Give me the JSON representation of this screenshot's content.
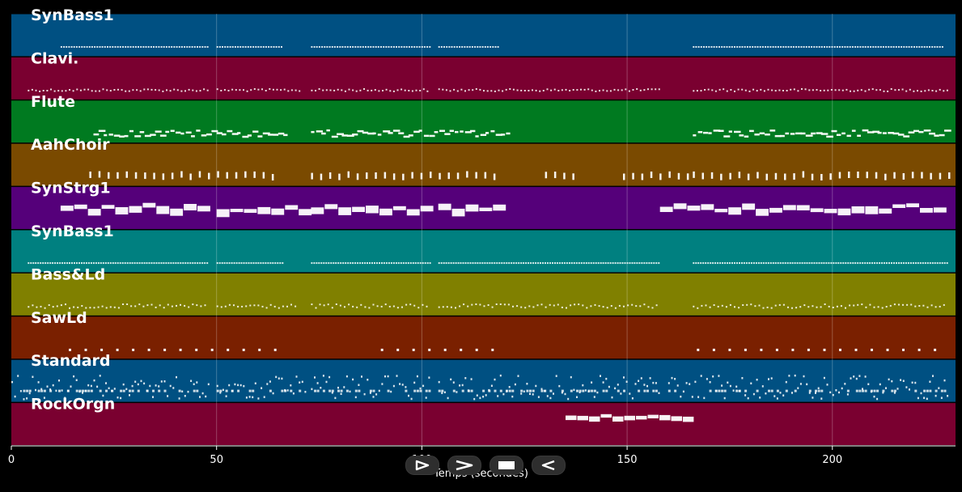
{
  "x_axis": {
    "label": "Temps (secondes)",
    "range": [
      0,
      230
    ],
    "ticks": [
      {
        "value": 0,
        "label": "0"
      },
      {
        "value": 50,
        "label": "50"
      },
      {
        "value": 100,
        "label": "100"
      },
      {
        "value": 150,
        "label": "150"
      },
      {
        "value": 200,
        "label": "200"
      }
    ]
  },
  "tracks": [
    {
      "name": "SynBass1",
      "color": "#005082",
      "style": "dots",
      "density": 1.6,
      "size": 2,
      "spread": 0,
      "segments": [
        [
          12,
          48
        ],
        [
          50,
          66
        ],
        [
          73,
          102
        ],
        [
          104,
          119
        ],
        [
          166,
          227
        ]
      ]
    },
    {
      "name": "Clavi.",
      "color": "#7a0030",
      "style": "dots",
      "density": 1.1,
      "size": 2,
      "spread": 3,
      "segments": [
        [
          4,
          48
        ],
        [
          50,
          70
        ],
        [
          73,
          102
        ],
        [
          104,
          158
        ],
        [
          166,
          228
        ]
      ]
    },
    {
      "name": "Flute",
      "color": "#007a20",
      "style": "dashes",
      "density": 0.8,
      "size": 3,
      "spread": 8,
      "segments": [
        [
          20,
          67
        ],
        [
          73,
          121
        ],
        [
          166,
          228
        ]
      ]
    },
    {
      "name": "AahChoir",
      "color": "#7a4a00",
      "style": "bars",
      "density": 0.45,
      "size": 4,
      "spread": 6,
      "segments": [
        [
          19,
          64
        ],
        [
          73,
          118
        ],
        [
          130,
          138
        ],
        [
          149,
          165
        ],
        [
          166,
          230
        ]
      ]
    },
    {
      "name": "SynStrg1",
      "color": "#55007a",
      "style": "blocks",
      "density": 0.3,
      "size": 7,
      "spread": 8,
      "segments": [
        [
          12,
          48
        ],
        [
          50,
          72
        ],
        [
          73,
          102
        ],
        [
          104,
          119
        ],
        [
          158,
          227
        ]
      ]
    },
    {
      "name": "SynBass1",
      "color": "#008080",
      "style": "dots",
      "density": 1.7,
      "size": 2,
      "spread": 0,
      "segments": [
        [
          4,
          48
        ],
        [
          50,
          66
        ],
        [
          73,
          102
        ],
        [
          104,
          158
        ],
        [
          166,
          228
        ]
      ]
    },
    {
      "name": "Bass&Ld",
      "color": "#808000",
      "style": "dots",
      "density": 1.0,
      "size": 2,
      "spread": 5,
      "segments": [
        [
          4,
          48
        ],
        [
          50,
          70
        ],
        [
          73,
          102
        ],
        [
          104,
          158
        ],
        [
          166,
          228
        ]
      ]
    },
    {
      "name": "SawLd",
      "color": "#7a2000",
      "style": "squares",
      "density": 0.26,
      "size": 3,
      "spread": 0,
      "segments": [
        [
          14,
          66
        ],
        [
          90,
          120
        ],
        [
          167,
          227
        ]
      ]
    },
    {
      "name": "Standard",
      "color": "#005082",
      "style": "drums",
      "density": 1.4,
      "size": 2,
      "spread": 10,
      "segments": [
        [
          0,
          48
        ],
        [
          50,
          72
        ],
        [
          73,
          102
        ],
        [
          104,
          158
        ],
        [
          160,
          228
        ]
      ]
    },
    {
      "name": "RockOrgn",
      "color": "#7a0030",
      "style": "organ",
      "density": 0.35,
      "size": 6,
      "spread": 4,
      "segments": [
        [
          135,
          165
        ]
      ]
    }
  ],
  "controls": [
    {
      "name": "play-forward-button",
      "icon": "play-outline-icon"
    },
    {
      "name": "next-button",
      "icon": "chevron-right-icon"
    },
    {
      "name": "stop-button",
      "icon": "stop-icon"
    },
    {
      "name": "play-backward-button",
      "icon": "play-back-icon"
    }
  ]
}
